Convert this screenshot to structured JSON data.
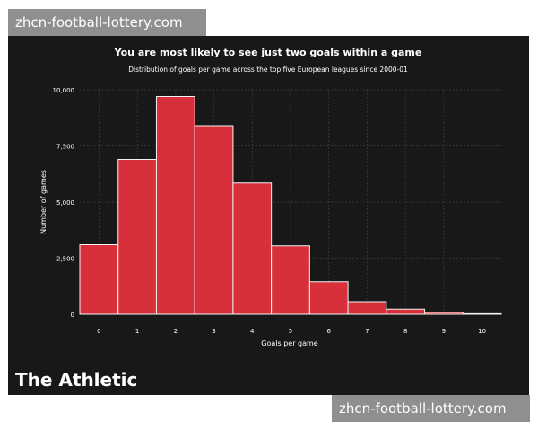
{
  "watermarks": {
    "top": "zhcn-football-lottery.com",
    "bottom": "zhcn-football-lottery.com"
  },
  "brand": {
    "logo_text": "The Athletic"
  },
  "colors": {
    "background": "#181818",
    "bar_fill": "#d8303a",
    "bar_stroke": "#f3f3f3",
    "text": "#ffffff",
    "grid": "#4a4a4a"
  },
  "chart_data": {
    "type": "bar",
    "title": "You are most likely to see just two goals within a game",
    "subtitle": "Distribution of goals per game across the top five European leagues since 2000-01",
    "xlabel": "Goals per game",
    "ylabel": "Number of games",
    "x_ticks": [
      "0",
      "1",
      "2",
      "3",
      "4",
      "5",
      "6",
      "7",
      "8",
      "9",
      "10"
    ],
    "y_ticks": [
      "0",
      "2,500",
      "5,000",
      "7,500",
      "10,000"
    ],
    "y_tick_values": [
      0,
      2500,
      5000,
      7500,
      10000
    ],
    "ylim": [
      0,
      10000
    ],
    "xlim": [
      -0.5,
      10.5
    ],
    "bins": [
      {
        "goals": 0,
        "value": 3100
      },
      {
        "goals": 1,
        "value": 6900
      },
      {
        "goals": 2,
        "value": 9700
      },
      {
        "goals": 3,
        "value": 8400
      },
      {
        "goals": 4,
        "value": 5850
      },
      {
        "goals": 5,
        "value": 3050
      },
      {
        "goals": 6,
        "value": 1450
      },
      {
        "goals": 7,
        "value": 560
      },
      {
        "goals": 8,
        "value": 230
      },
      {
        "goals": 9,
        "value": 80
      },
      {
        "goals": 10,
        "value": 25
      }
    ],
    "grid": true
  }
}
